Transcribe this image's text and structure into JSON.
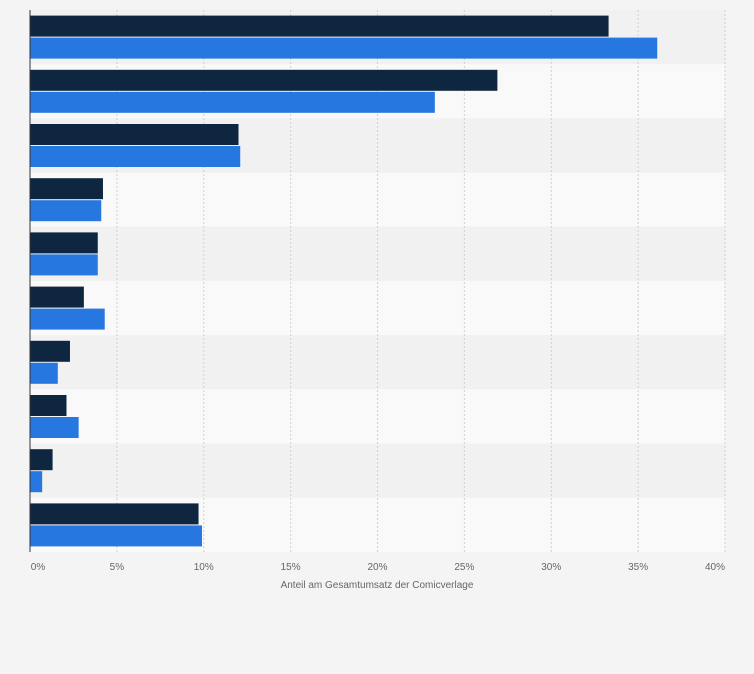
{
  "chart_data": {
    "type": "bar",
    "orientation": "horizontal",
    "categories": [
      "",
      "",
      "",
      "",
      "",
      "",
      "",
      "",
      "",
      ""
    ],
    "series": [
      {
        "values": [
          33.3,
          26.9,
          12.0,
          4.2,
          3.9,
          3.1,
          2.3,
          2.1,
          1.3,
          9.7
        ]
      },
      {
        "values": [
          36.1,
          23.3,
          12.1,
          4.1,
          3.9,
          4.3,
          1.6,
          2.8,
          0.7,
          9.9
        ]
      }
    ],
    "xlabel": "Anteil am Gesamtumsatz der Comicverlage",
    "ylabel": "",
    "xlim": [
      0,
      40
    ],
    "ticks": [
      "0%",
      "5%",
      "10%",
      "15%",
      "20%",
      "25%",
      "30%",
      "35%",
      "40%"
    ],
    "grid": "vertical dashed",
    "legend": "none",
    "colors": {
      "series": [
        "#0f2640",
        "#2777e0"
      ],
      "band_light": "#f9f9f9",
      "band_dark": "#f1f1f1",
      "grid": "#d0d0d0",
      "axis": "#333333",
      "text": "#666666"
    }
  }
}
